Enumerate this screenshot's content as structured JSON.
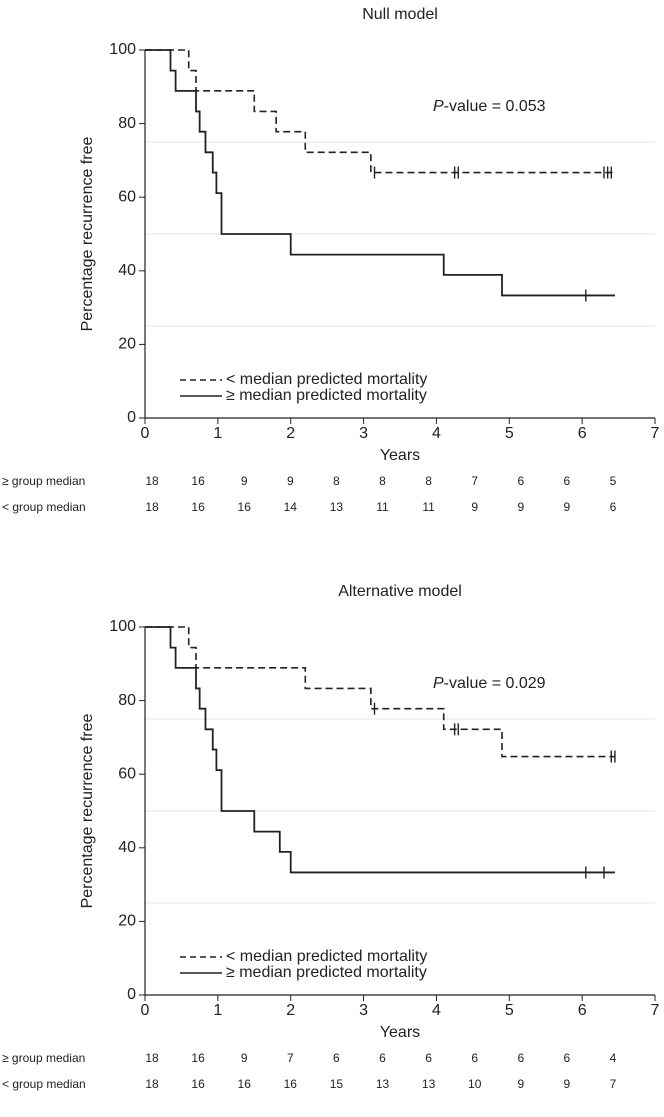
{
  "chart_data": [
    {
      "type": "km",
      "title": "Null model",
      "xlabel": "Years",
      "ylabel": "Percentage recurrence free",
      "annotation": [
        "P",
        "-value = 0.053"
      ],
      "xlim": [
        0,
        7
      ],
      "ylim": [
        0,
        100
      ],
      "xticks": [
        0,
        1,
        2,
        3,
        4,
        5,
        6,
        7
      ],
      "yticks": [
        0,
        20,
        40,
        60,
        80,
        100
      ],
      "reference_lines": [
        25,
        50,
        75
      ],
      "legend": "lower left",
      "series": [
        {
          "name": "< median predicted mortality",
          "color": "#222",
          "dash": true,
          "x": [
            0,
            0.6,
            0.7,
            1.5,
            1.8,
            2.2,
            3.1,
            6.45
          ],
          "values": [
            100,
            94.4,
            88.9,
            83.3,
            77.8,
            72.2,
            66.7,
            66.7
          ],
          "censored": {
            "x": [
              3.15,
              4.25,
              4.3,
              6.3,
              6.35,
              6.4
            ],
            "values": [
              66.7,
              66.7,
              66.7,
              66.7,
              66.7,
              66.7
            ]
          }
        },
        {
          "name": "≥ median predicted mortality",
          "color": "#222",
          "dash": false,
          "x": [
            0,
            0.35,
            0.42,
            0.7,
            0.75,
            0.83,
            0.93,
            0.98,
            1.05,
            2.0,
            4.1,
            4.9,
            6.45
          ],
          "values": [
            100,
            94.4,
            88.9,
            83.3,
            77.8,
            72.2,
            66.7,
            61.1,
            50,
            44.4,
            38.9,
            33.3,
            33.3
          ],
          "censored": {
            "x": [
              6.05
            ],
            "values": [
              33.3
            ]
          }
        }
      ],
      "risk_table": [
        {
          "label": "≥ group median",
          "counts": [
            18,
            16,
            9,
            9,
            8,
            8,
            8,
            7,
            6,
            6,
            5
          ]
        },
        {
          "label": "< group median",
          "counts": [
            18,
            16,
            16,
            14,
            13,
            11,
            11,
            9,
            9,
            9,
            6
          ]
        }
      ]
    },
    {
      "type": "km",
      "title": "Alternative model",
      "xlabel": "Years",
      "ylabel": "Percentage recurrence free",
      "annotation": [
        "P",
        "-value = 0.029"
      ],
      "xlim": [
        0,
        7
      ],
      "ylim": [
        0,
        100
      ],
      "xticks": [
        0,
        1,
        2,
        3,
        4,
        5,
        6,
        7
      ],
      "yticks": [
        0,
        20,
        40,
        60,
        80,
        100
      ],
      "reference_lines": [
        25,
        50,
        75
      ],
      "legend": "lower left",
      "series": [
        {
          "name": "< median predicted mortality",
          "color": "#222",
          "dash": true,
          "x": [
            0,
            0.6,
            0.7,
            2.2,
            3.1,
            4.1,
            4.9,
            6.45
          ],
          "values": [
            100,
            94.4,
            88.9,
            83.3,
            77.8,
            72.2,
            64.8,
            64.8
          ],
          "censored": {
            "x": [
              3.15,
              4.25,
              4.3,
              6.4,
              6.45
            ],
            "values": [
              77.8,
              72.2,
              72.2,
              64.8,
              64.8
            ]
          }
        },
        {
          "name": "≥ median predicted mortality",
          "color": "#222",
          "dash": false,
          "x": [
            0,
            0.35,
            0.42,
            0.7,
            0.75,
            0.83,
            0.93,
            0.98,
            1.05,
            1.5,
            1.85,
            2.0,
            6.45
          ],
          "values": [
            100,
            94.4,
            88.9,
            83.3,
            77.8,
            72.2,
            66.7,
            61.1,
            50,
            44.4,
            38.9,
            33.3,
            33.3
          ],
          "censored": {
            "x": [
              6.05,
              6.3
            ],
            "values": [
              33.3,
              33.3
            ]
          }
        }
      ],
      "risk_table": [
        {
          "label": "≥ group median",
          "counts": [
            18,
            16,
            9,
            7,
            6,
            6,
            6,
            6,
            6,
            6,
            4
          ]
        },
        {
          "label": "< group median",
          "counts": [
            18,
            16,
            16,
            16,
            15,
            13,
            13,
            10,
            9,
            9,
            7
          ]
        }
      ]
    }
  ]
}
